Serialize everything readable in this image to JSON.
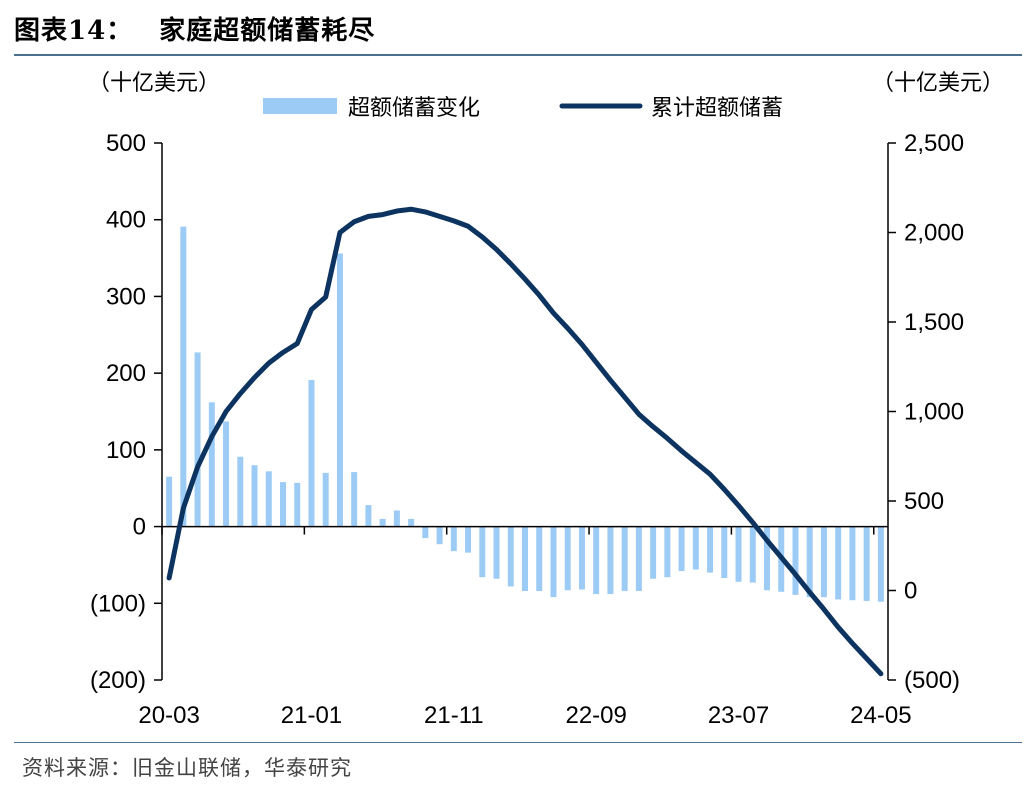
{
  "header": {
    "figure_label": "图表14：",
    "title": "家庭超额储蓄耗尽"
  },
  "footer": {
    "source": "资料来源：旧金山联储，华泰研究"
  },
  "colors": {
    "bar": "#9ccbf5",
    "line": "#0d3460",
    "axis": "#000000",
    "rule": "#4a6f8f"
  },
  "chart_data": {
    "type": "bar+line",
    "left_unit": "（十亿美元）",
    "right_unit": "（十亿美元）",
    "legend": [
      "超额储蓄变化",
      "累计超额储蓄"
    ],
    "legend_placement": "top-center",
    "grid": false,
    "x_tick_labels": [
      "20-03",
      "21-01",
      "21-11",
      "22-09",
      "23-07",
      "24-05"
    ],
    "x_tick_index": [
      0,
      10,
      20,
      30,
      40,
      50
    ],
    "left_axis": {
      "ylim": [
        -200,
        500
      ],
      "ticks": [
        500,
        400,
        300,
        200,
        100,
        0,
        -100,
        -200
      ],
      "tick_labels": [
        "500",
        "400",
        "300",
        "200",
        "100",
        "0",
        "(100)",
        "(200)"
      ]
    },
    "right_axis": {
      "ylim": [
        -500,
        2500
      ],
      "ticks": [
        2500,
        2000,
        1500,
        1000,
        500,
        0,
        -500
      ],
      "tick_labels": [
        "2,500",
        "2,000",
        "1,500",
        "1,000",
        "500",
        "0",
        "(500)"
      ]
    },
    "series": [
      {
        "name": "超额储蓄变化",
        "type": "bar",
        "axis": "left",
        "values": [
          65,
          391,
          227,
          162,
          137,
          91,
          80,
          72,
          58,
          57,
          191,
          70,
          356,
          71,
          28,
          10,
          21,
          10,
          -15,
          -23,
          -32,
          -34,
          -66,
          -68,
          -78,
          -84,
          -84,
          -92,
          -83,
          -82,
          -88,
          -88,
          -84,
          -84,
          -68,
          -66,
          -58,
          -56,
          -60,
          -67,
          -72,
          -73,
          -83,
          -85,
          -89,
          -92,
          -92,
          -95,
          -96,
          -97,
          -98
        ]
      },
      {
        "name": "累计超额储蓄",
        "type": "line",
        "axis": "right",
        "values": [
          70,
          460,
          690,
          860,
          1000,
          1100,
          1190,
          1270,
          1330,
          1380,
          1570,
          1640,
          2000,
          2060,
          2090,
          2100,
          2120,
          2130,
          2115,
          2090,
          2065,
          2035,
          1975,
          1905,
          1825,
          1740,
          1650,
          1550,
          1465,
          1375,
          1275,
          1175,
          1080,
          985,
          915,
          850,
          780,
          715,
          650,
          565,
          475,
          380,
          280,
          185,
          90,
          -10,
          -105,
          -205,
          -295,
          -380,
          -465
        ]
      }
    ]
  }
}
